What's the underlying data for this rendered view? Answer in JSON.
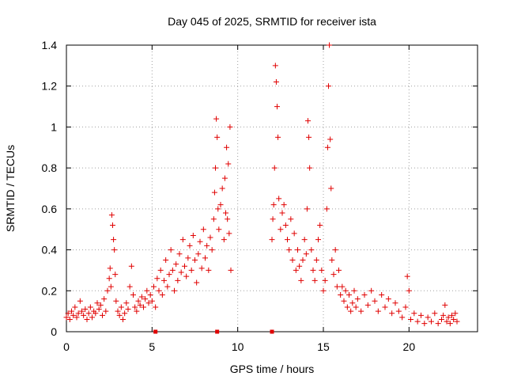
{
  "chart_data": {
    "type": "scatter",
    "title": "Day 045 of 2025, SRMTID for receiver ista",
    "xlabel": "GPS time / hours",
    "ylabel": "SRMTID / TECUs",
    "xlim": [
      0,
      24
    ],
    "ylim": [
      0,
      1.4
    ],
    "xticks": [
      0,
      5,
      10,
      15,
      20
    ],
    "yticks": [
      0,
      0.2,
      0.4,
      0.6,
      0.8,
      1,
      1.2,
      1.4
    ],
    "xtick_labels": [
      "0",
      "5",
      "10",
      "15",
      "20"
    ],
    "ytick_labels": [
      "0",
      "0.2",
      "0.4",
      "0.6",
      "0.8",
      "1",
      "1.2",
      "1.4"
    ],
    "grid": true,
    "marker": "plus",
    "color": "#e00000",
    "series": [
      {
        "name": "SRMTID",
        "points": [
          [
            0.0,
            0.07
          ],
          [
            0.1,
            0.09
          ],
          [
            0.2,
            0.06
          ],
          [
            0.3,
            0.1
          ],
          [
            0.4,
            0.08
          ],
          [
            0.5,
            0.12
          ],
          [
            0.6,
            0.07
          ],
          [
            0.7,
            0.09
          ],
          [
            0.8,
            0.15
          ],
          [
            0.9,
            0.1
          ],
          [
            1.0,
            0.08
          ],
          [
            1.1,
            0.11
          ],
          [
            1.2,
            0.06
          ],
          [
            1.3,
            0.09
          ],
          [
            1.4,
            0.12
          ],
          [
            1.5,
            0.07
          ],
          [
            1.6,
            0.1
          ],
          [
            1.7,
            0.09
          ],
          [
            1.8,
            0.14
          ],
          [
            1.9,
            0.11
          ],
          [
            2.0,
            0.13
          ],
          [
            2.1,
            0.08
          ],
          [
            2.2,
            0.16
          ],
          [
            2.3,
            0.1
          ],
          [
            2.4,
            0.2
          ],
          [
            2.5,
            0.26
          ],
          [
            2.55,
            0.31
          ],
          [
            2.6,
            0.22
          ],
          [
            2.65,
            0.57
          ],
          [
            2.7,
            0.52
          ],
          [
            2.75,
            0.45
          ],
          [
            2.8,
            0.4
          ],
          [
            2.85,
            0.28
          ],
          [
            2.9,
            0.15
          ],
          [
            3.0,
            0.1
          ],
          [
            3.1,
            0.08
          ],
          [
            3.2,
            0.12
          ],
          [
            3.3,
            0.06
          ],
          [
            3.4,
            0.09
          ],
          [
            3.5,
            0.14
          ],
          [
            3.6,
            0.11
          ],
          [
            3.7,
            0.22
          ],
          [
            3.8,
            0.32
          ],
          [
            3.9,
            0.18
          ],
          [
            4.0,
            0.12
          ],
          [
            4.1,
            0.1
          ],
          [
            4.2,
            0.15
          ],
          [
            4.3,
            0.13
          ],
          [
            4.4,
            0.17
          ],
          [
            4.5,
            0.12
          ],
          [
            4.6,
            0.16
          ],
          [
            4.7,
            0.2
          ],
          [
            4.8,
            0.14
          ],
          [
            4.9,
            0.18
          ],
          [
            5.0,
            0.15
          ],
          [
            5.1,
            0.22
          ],
          [
            5.2,
            0.12
          ],
          [
            5.3,
            0.26
          ],
          [
            5.4,
            0.2
          ],
          [
            5.5,
            0.3
          ],
          [
            5.6,
            0.18
          ],
          [
            5.7,
            0.25
          ],
          [
            5.8,
            0.35
          ],
          [
            5.9,
            0.22
          ],
          [
            6.0,
            0.28
          ],
          [
            6.1,
            0.4
          ],
          [
            6.2,
            0.3
          ],
          [
            6.3,
            0.2
          ],
          [
            6.4,
            0.33
          ],
          [
            6.5,
            0.25
          ],
          [
            6.6,
            0.38
          ],
          [
            6.7,
            0.29
          ],
          [
            6.8,
            0.45
          ],
          [
            6.9,
            0.32
          ],
          [
            7.0,
            0.27
          ],
          [
            7.1,
            0.36
          ],
          [
            7.2,
            0.42
          ],
          [
            7.3,
            0.3
          ],
          [
            7.4,
            0.47
          ],
          [
            7.5,
            0.35
          ],
          [
            7.6,
            0.24
          ],
          [
            7.7,
            0.38
          ],
          [
            7.8,
            0.44
          ],
          [
            7.9,
            0.31
          ],
          [
            8.0,
            0.5
          ],
          [
            8.1,
            0.36
          ],
          [
            8.2,
            0.42
          ],
          [
            8.3,
            0.3
          ],
          [
            8.4,
            0.46
          ],
          [
            8.5,
            0.4
          ],
          [
            8.6,
            0.55
          ],
          [
            8.65,
            0.68
          ],
          [
            8.7,
            0.8
          ],
          [
            8.75,
            1.04
          ],
          [
            8.8,
            0.95
          ],
          [
            8.85,
            0.6
          ],
          [
            8.9,
            0.5
          ],
          [
            9.0,
            0.62
          ],
          [
            9.1,
            0.7
          ],
          [
            9.2,
            0.45
          ],
          [
            9.25,
            0.75
          ],
          [
            9.3,
            0.58
          ],
          [
            9.35,
            0.9
          ],
          [
            9.4,
            0.55
          ],
          [
            9.45,
            0.82
          ],
          [
            9.5,
            0.48
          ],
          [
            9.55,
            1.0
          ],
          [
            9.6,
            0.3
          ],
          [
            12.0,
            0.45
          ],
          [
            12.05,
            0.55
          ],
          [
            12.1,
            0.62
          ],
          [
            12.15,
            0.8
          ],
          [
            12.2,
            1.3
          ],
          [
            12.25,
            1.22
          ],
          [
            12.3,
            1.1
          ],
          [
            12.35,
            0.95
          ],
          [
            12.4,
            0.65
          ],
          [
            12.5,
            0.5
          ],
          [
            12.6,
            0.58
          ],
          [
            12.7,
            0.62
          ],
          [
            12.8,
            0.52
          ],
          [
            12.9,
            0.45
          ],
          [
            13.0,
            0.4
          ],
          [
            13.1,
            0.55
          ],
          [
            13.2,
            0.35
          ],
          [
            13.3,
            0.48
          ],
          [
            13.4,
            0.3
          ],
          [
            13.5,
            0.4
          ],
          [
            13.6,
            0.32
          ],
          [
            13.7,
            0.25
          ],
          [
            13.8,
            0.35
          ],
          [
            13.9,
            0.45
          ],
          [
            14.0,
            0.38
          ],
          [
            14.05,
            0.6
          ],
          [
            14.1,
            1.03
          ],
          [
            14.15,
            0.95
          ],
          [
            14.2,
            0.8
          ],
          [
            14.3,
            0.4
          ],
          [
            14.4,
            0.3
          ],
          [
            14.5,
            0.25
          ],
          [
            14.6,
            0.35
          ],
          [
            14.7,
            0.45
          ],
          [
            14.8,
            0.52
          ],
          [
            14.9,
            0.3
          ],
          [
            15.0,
            0.2
          ],
          [
            15.1,
            0.25
          ],
          [
            15.2,
            0.6
          ],
          [
            15.25,
            0.9
          ],
          [
            15.3,
            1.2
          ],
          [
            15.35,
            1.4
          ],
          [
            15.4,
            0.94
          ],
          [
            15.45,
            0.7
          ],
          [
            15.5,
            0.35
          ],
          [
            15.6,
            0.28
          ],
          [
            15.7,
            0.4
          ],
          [
            15.8,
            0.22
          ],
          [
            15.9,
            0.3
          ],
          [
            16.0,
            0.18
          ],
          [
            16.1,
            0.22
          ],
          [
            16.2,
            0.15
          ],
          [
            16.3,
            0.2
          ],
          [
            16.4,
            0.12
          ],
          [
            16.5,
            0.18
          ],
          [
            16.6,
            0.1
          ],
          [
            16.7,
            0.14
          ],
          [
            16.8,
            0.2
          ],
          [
            16.9,
            0.12
          ],
          [
            17.0,
            0.16
          ],
          [
            17.2,
            0.1
          ],
          [
            17.4,
            0.18
          ],
          [
            17.6,
            0.13
          ],
          [
            17.8,
            0.2
          ],
          [
            18.0,
            0.15
          ],
          [
            18.2,
            0.1
          ],
          [
            18.4,
            0.18
          ],
          [
            18.6,
            0.12
          ],
          [
            18.8,
            0.16
          ],
          [
            19.0,
            0.09
          ],
          [
            19.2,
            0.14
          ],
          [
            19.4,
            0.1
          ],
          [
            19.6,
            0.07
          ],
          [
            19.8,
            0.12
          ],
          [
            19.9,
            0.27
          ],
          [
            20.0,
            0.2
          ],
          [
            20.1,
            0.06
          ],
          [
            20.3,
            0.09
          ],
          [
            20.5,
            0.05
          ],
          [
            20.7,
            0.08
          ],
          [
            20.9,
            0.04
          ],
          [
            21.1,
            0.07
          ],
          [
            21.3,
            0.05
          ],
          [
            21.5,
            0.09
          ],
          [
            21.7,
            0.04
          ],
          [
            21.9,
            0.06
          ],
          [
            22.0,
            0.08
          ],
          [
            22.1,
            0.13
          ],
          [
            22.2,
            0.05
          ],
          [
            22.3,
            0.07
          ],
          [
            22.4,
            0.04
          ],
          [
            22.5,
            0.08
          ],
          [
            22.6,
            0.06
          ],
          [
            22.7,
            0.09
          ],
          [
            22.8,
            0.05
          ]
        ]
      }
    ],
    "gap_markers": [
      [
        5.2,
        0.0
      ],
      [
        8.8,
        0.0
      ],
      [
        12.0,
        0.0
      ]
    ]
  }
}
